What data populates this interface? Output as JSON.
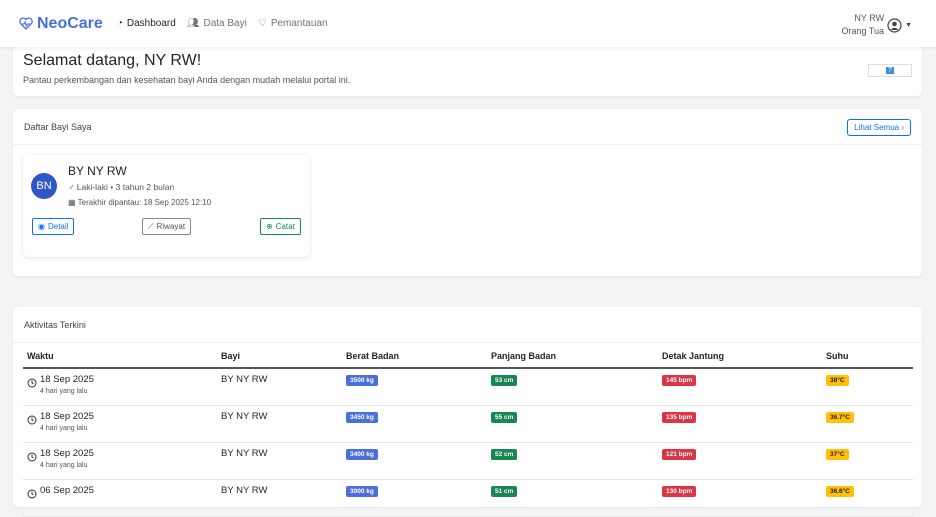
{
  "nav": {
    "brand": "NeoCare",
    "links": [
      {
        "label": "Dashboard",
        "icon": "gauge-icon",
        "active": true
      },
      {
        "label": "Data Bayi",
        "icon": "people-icon",
        "active": false
      },
      {
        "label": "Pemantauan",
        "icon": "heart-pulse-icon",
        "active": false
      }
    ],
    "user_name": "NY RW",
    "user_role": "Orang Tua"
  },
  "welcome": {
    "title": "Selamat datang, NY RW!",
    "subtitle": "Pantau perkembangan dan kesehatan bayi Anda dengan mudah melalui portal ini.",
    "help": "?"
  },
  "babies": {
    "title": "Daftar Bayi Saya",
    "see_all": "Lihat Semua",
    "items": [
      {
        "initials": "BN",
        "name": "BY NY RW",
        "gender_age": "Laki-laki • 3 tahun 2 bulan",
        "last_monitored": "Terakhir dipantau: 18 Sep 2025 12:10",
        "detail": "Detail",
        "history": "Riwayat",
        "record": "Catat"
      }
    ]
  },
  "activity": {
    "title": "Aktivitas Terkini",
    "columns": [
      "Waktu",
      "Bayi",
      "Berat Badan",
      "Panjang Badan",
      "Detak Jantung",
      "Suhu"
    ],
    "rows": [
      {
        "date": "18 Sep 2025",
        "ago": "4 hari yang lalu",
        "baby": "BY NY RW",
        "weight": "3500 kg",
        "length": "53 cm",
        "heart": "145 bpm",
        "temp": "38°C"
      },
      {
        "date": "18 Sep 2025",
        "ago": "4 hari yang lalu",
        "baby": "BY NY RW",
        "weight": "3450 kg",
        "length": "55 cm",
        "heart": "135 bpm",
        "temp": "36.7°C"
      },
      {
        "date": "18 Sep 2025",
        "ago": "4 hari yang lalu",
        "baby": "BY NY RW",
        "weight": "3400 kg",
        "length": "52 cm",
        "heart": "121 bpm",
        "temp": "37°C"
      },
      {
        "date": "06 Sep 2025",
        "ago": "",
        "baby": "BY NY RW",
        "weight": "3000 kg",
        "length": "51 cm",
        "heart": "130 bpm",
        "temp": "36.6°C"
      }
    ]
  },
  "colors": {
    "brand": "#4a6fdc",
    "weight": "#4a6fdc",
    "length": "#198754",
    "heart": "#dc3545",
    "temp": "#ffc107"
  }
}
